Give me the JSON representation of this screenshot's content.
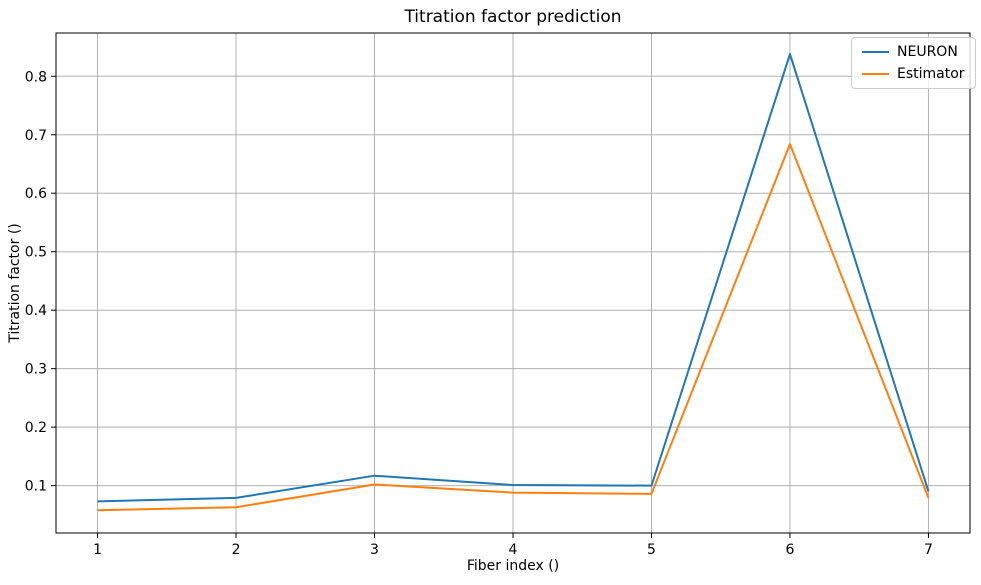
{
  "chart_data": {
    "type": "line",
    "title": "Titration factor prediction",
    "xlabel": "Fiber index ()",
    "ylabel": "Titration factor ()",
    "x": [
      1,
      2,
      3,
      4,
      5,
      6,
      7
    ],
    "series": [
      {
        "name": "NEURON",
        "color": "#1f77b4",
        "values": [
          0.073,
          0.079,
          0.117,
          0.101,
          0.1,
          0.838,
          0.09
        ]
      },
      {
        "name": "Estimator",
        "color": "#ff7f0e",
        "values": [
          0.058,
          0.063,
          0.102,
          0.088,
          0.086,
          0.684,
          0.079
        ]
      }
    ],
    "xlim": [
      0.7,
      7.3
    ],
    "ylim": [
      0.019,
      0.874
    ],
    "xticks": {
      "values": [
        1,
        2,
        3,
        4,
        5,
        6,
        7
      ],
      "labels": [
        "1",
        "2",
        "3",
        "4",
        "5",
        "6",
        "7"
      ]
    },
    "yticks": {
      "values": [
        0.1,
        0.2,
        0.3,
        0.4,
        0.5,
        0.6,
        0.7,
        0.8
      ],
      "labels": [
        "0.1",
        "0.2",
        "0.3",
        "0.4",
        "0.5",
        "0.6",
        "0.7",
        "0.8"
      ]
    },
    "grid": true,
    "grid_color": "#b0b0b0",
    "axes_color": "#000000",
    "background": "#ffffff",
    "legend_position": "upper right"
  }
}
